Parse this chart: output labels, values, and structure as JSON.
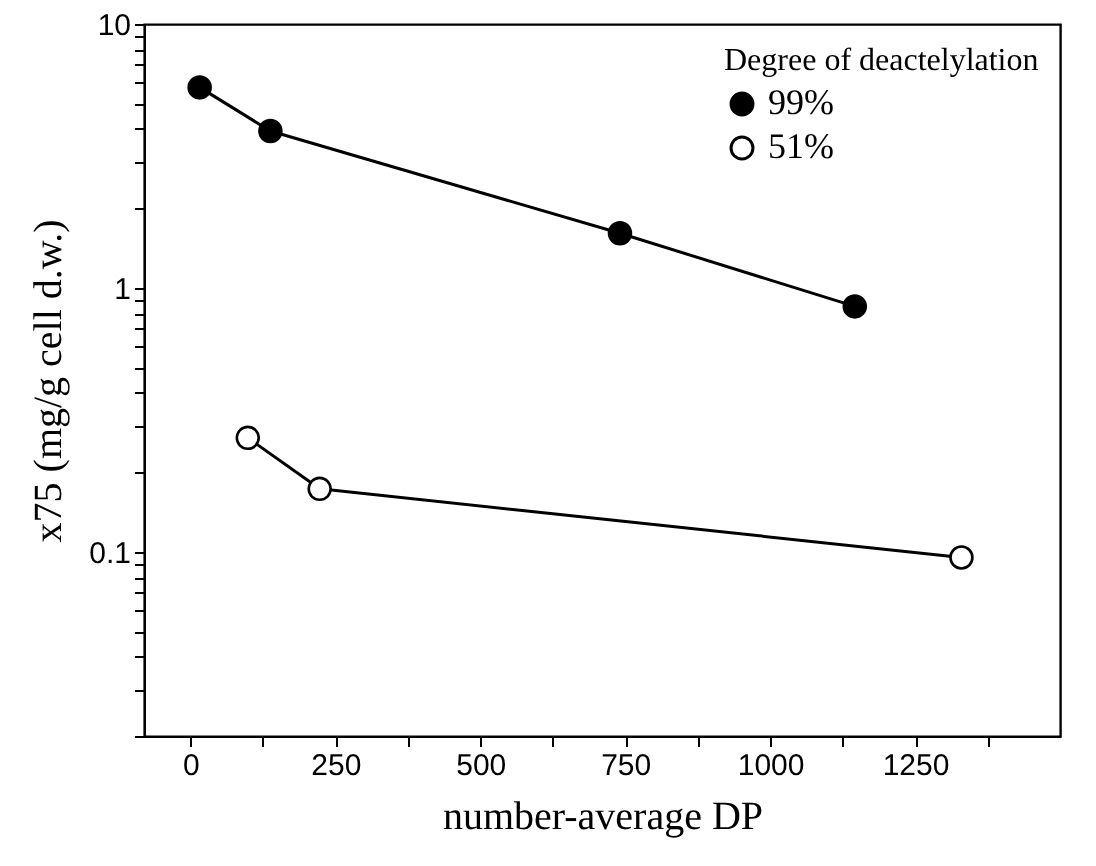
{
  "chart_data": {
    "type": "line",
    "xlabel": "number-average DP",
    "ylabel": "x75 (mg/g cell d.w.)",
    "legend_title": "Degree of deactelylation",
    "legend": "top right",
    "marker": "circle",
    "line_style": "solid",
    "log": "y",
    "grid": false,
    "xlim": [
      -80,
      1500
    ],
    "xticks": [
      0,
      {
        "value": 125,
        "label": null
      },
      250,
      {
        "value": 375,
        "label": null
      },
      500,
      {
        "value": 625,
        "label": null
      },
      750,
      {
        "value": 875,
        "label": null
      },
      1000,
      {
        "value": 1125,
        "label": null
      },
      1250,
      {
        "value": 1375,
        "label": null
      }
    ],
    "ylim": [
      0.02,
      10
    ],
    "yticks": [
      {
        "value": 0.02,
        "label": null
      },
      {
        "value": 0.03,
        "label": null
      },
      {
        "value": 0.04,
        "label": null
      },
      {
        "value": 0.05,
        "label": null
      },
      {
        "value": 0.06,
        "label": null
      },
      {
        "value": 0.07,
        "label": null
      },
      {
        "value": 0.08,
        "label": null
      },
      {
        "value": 0.09,
        "label": null
      },
      0.1,
      {
        "value": 0.2,
        "label": null
      },
      {
        "value": 0.3,
        "label": null
      },
      {
        "value": 0.4,
        "label": null
      },
      {
        "value": 0.5,
        "label": null
      },
      {
        "value": 0.6,
        "label": null
      },
      {
        "value": 0.7,
        "label": null
      },
      {
        "value": 0.8,
        "label": null
      },
      {
        "value": 0.9,
        "label": null
      },
      1,
      {
        "value": 2,
        "label": null
      },
      {
        "value": 3,
        "label": null
      },
      {
        "value": 4,
        "label": null
      },
      {
        "value": 5,
        "label": null
      },
      {
        "value": 6,
        "label": null
      },
      {
        "value": 7,
        "label": null
      },
      {
        "value": 8,
        "label": null
      },
      {
        "value": 9,
        "label": null
      },
      10
    ],
    "series": [
      {
        "name": "99%",
        "color": "#000000",
        "marker": "circle",
        "x": [
          16,
          138,
          741,
          1146
        ],
        "values": [
          5.75,
          3.93,
          1.61,
          0.85
        ]
      },
      {
        "name": "51%",
        "color": "#000000",
        "marker": "open circle",
        "x": [
          99,
          223,
          1330
        ],
        "values": [
          0.27,
          0.173,
          0.095
        ]
      }
    ]
  }
}
